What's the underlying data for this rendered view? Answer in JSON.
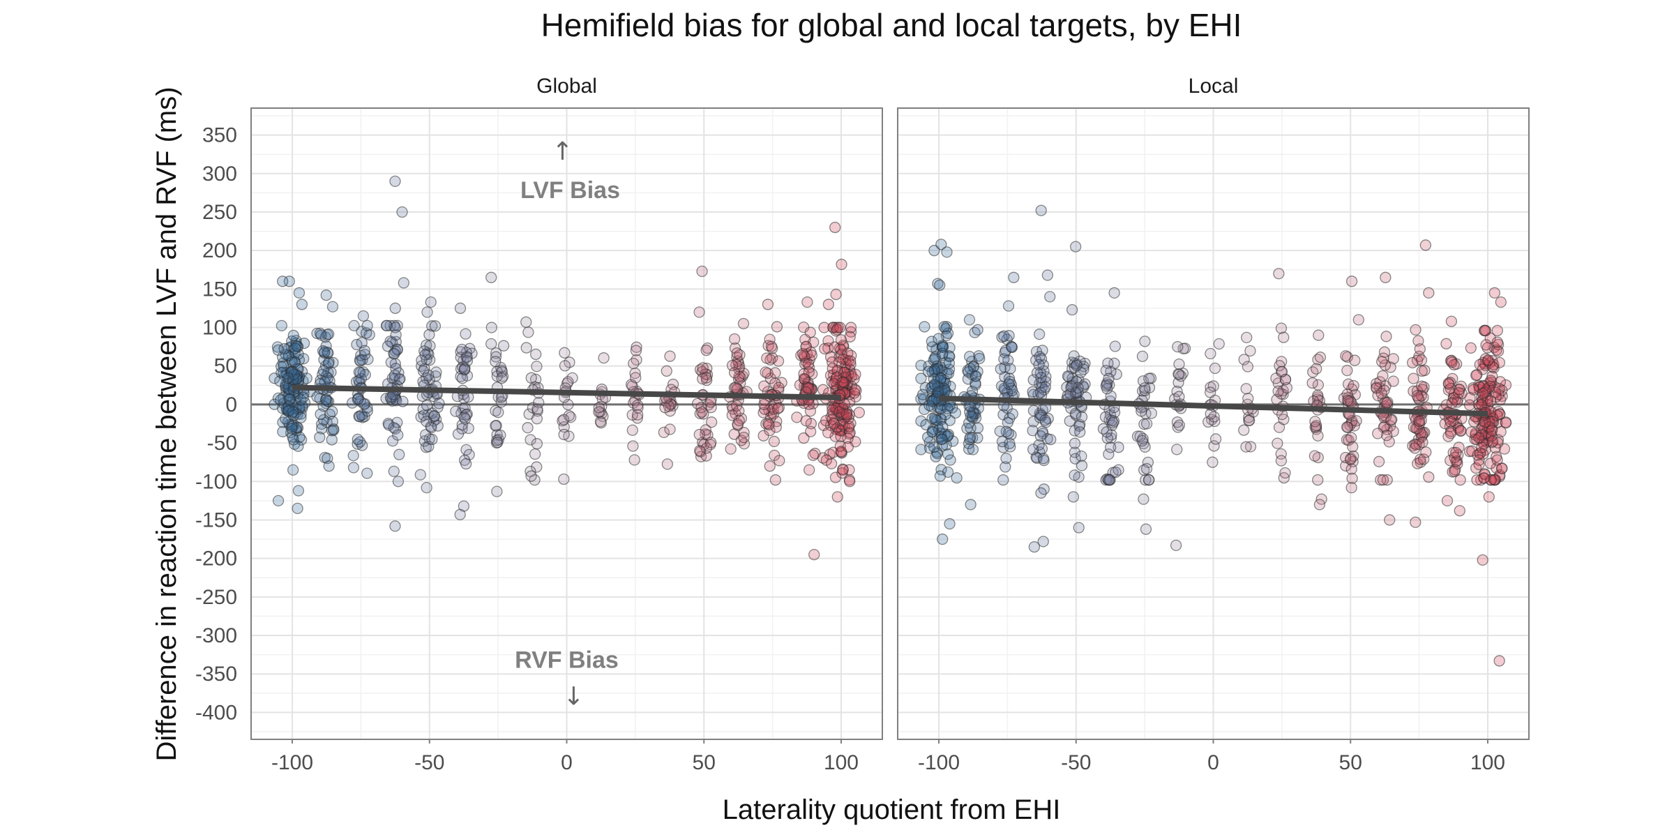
{
  "chart_data": {
    "type": "scatter",
    "title": "Hemifield bias for global and local targets, by EHI",
    "xlabel": "Laterality quotient from EHI",
    "ylabel": "Difference in reaction time between LVF and RVF (ms)",
    "xlim": [
      -115,
      115
    ],
    "ylim": [
      -435,
      385
    ],
    "x_ticks": [
      -100,
      -50,
      0,
      50,
      100
    ],
    "y_ticks": [
      350,
      300,
      250,
      200,
      150,
      100,
      50,
      0,
      -50,
      -100,
      -150,
      -200,
      -250,
      -300,
      -350,
      -400
    ],
    "x_tick_labels": [
      "-100",
      "-50",
      "0",
      "50",
      "100"
    ],
    "y_tick_labels": [
      "350",
      "300",
      "250",
      "200",
      "150",
      "100",
      "50",
      "0",
      "-50",
      "-100",
      "-150",
      "-200",
      "-250",
      "-300",
      "-350",
      "-400"
    ],
    "grid": true,
    "reference_line_y": 0,
    "color_scale": {
      "low": "#3b6a9a",
      "mid": "#a890a4",
      "high": "#d0485a",
      "low_value": -100,
      "high_value": 100
    },
    "annotations": {
      "lvf_label": "LVF Bias",
      "rvf_label": "RVF Bias",
      "up_arrow": "↑",
      "down_arrow": "↓"
    },
    "panels": [
      {
        "name": "Global",
        "trend": {
          "x": [
            -100,
            100
          ],
          "y": [
            22,
            9
          ]
        },
        "clusters": [
          {
            "x": -100,
            "n": 140,
            "mean": 22,
            "sd": 40,
            "outliers": [
              160,
              160,
              145,
              130,
              -112,
              -125,
              -135,
              -85
            ]
          },
          {
            "x": -87.5,
            "n": 55,
            "mean": 28,
            "sd": 45,
            "outliers": [
              142,
              127,
              -70,
              -80
            ]
          },
          {
            "x": -75,
            "n": 45,
            "mean": 22,
            "sd": 48,
            "outliers": [
              115,
              -82
            ]
          },
          {
            "x": -62.5,
            "n": 50,
            "mean": 22,
            "sd": 50,
            "outliers": [
              290,
              250,
              158,
              125,
              -100,
              -158
            ]
          },
          {
            "x": -50,
            "n": 55,
            "mean": 20,
            "sd": 48,
            "outliers": [
              133,
              120,
              -108
            ]
          },
          {
            "x": -37.5,
            "n": 40,
            "mean": 8,
            "sd": 45,
            "outliers": [
              125,
              -132,
              -143
            ]
          },
          {
            "x": -25,
            "n": 28,
            "mean": 10,
            "sd": 50,
            "outliers": [
              165,
              -113
            ]
          },
          {
            "x": -12.5,
            "n": 22,
            "mean": 12,
            "sd": 45,
            "outliers": [
              107,
              -87,
              -93
            ]
          },
          {
            "x": 0,
            "n": 18,
            "mean": 15,
            "sd": 35,
            "outliers": [
              -97
            ]
          },
          {
            "x": 12.5,
            "n": 14,
            "mean": 5,
            "sd": 30,
            "outliers": []
          },
          {
            "x": 25,
            "n": 20,
            "mean": 5,
            "sd": 35,
            "outliers": [
              70,
              -72
            ]
          },
          {
            "x": 37.5,
            "n": 20,
            "mean": 5,
            "sd": 30,
            "outliers": []
          },
          {
            "x": 50,
            "n": 35,
            "mean": 5,
            "sd": 40,
            "outliers": [
              173,
              120,
              -60
            ]
          },
          {
            "x": 62.5,
            "n": 45,
            "mean": 15,
            "sd": 35,
            "outliers": [
              105
            ]
          },
          {
            "x": 75,
            "n": 50,
            "mean": 15,
            "sd": 40,
            "outliers": [
              130,
              -80
            ]
          },
          {
            "x": 87.5,
            "n": 60,
            "mean": 12,
            "sd": 40,
            "outliers": [
              133,
              -195,
              -85
            ]
          },
          {
            "x": 100,
            "n": 170,
            "mean": 10,
            "sd": 45,
            "outliers": [
              230,
              182,
              143,
              130,
              -120,
              -100,
              -85
            ]
          }
        ]
      },
      {
        "name": "Local",
        "trend": {
          "x": [
            -100,
            100
          ],
          "y": [
            8,
            -12
          ]
        },
        "clusters": [
          {
            "x": -100,
            "n": 140,
            "mean": 15,
            "sd": 45,
            "outliers": [
              208,
              200,
              198,
              157,
              155,
              -155,
              -175,
              -93
            ]
          },
          {
            "x": -87.5,
            "n": 50,
            "mean": 10,
            "sd": 42,
            "outliers": [
              110,
              -130
            ]
          },
          {
            "x": -75,
            "n": 45,
            "mean": 15,
            "sd": 45,
            "outliers": [
              165,
              128,
              -70
            ]
          },
          {
            "x": -62.5,
            "n": 50,
            "mean": 10,
            "sd": 50,
            "outliers": [
              252,
              168,
              140,
              -110,
              -115,
              -178,
              -185
            ]
          },
          {
            "x": -50,
            "n": 60,
            "mean": 10,
            "sd": 45,
            "outliers": [
              205,
              123,
              -120,
              -160
            ]
          },
          {
            "x": -37.5,
            "n": 40,
            "mean": -5,
            "sd": 50,
            "outliers": [
              145,
              -85,
              -88
            ]
          },
          {
            "x": -25,
            "n": 30,
            "mean": -5,
            "sd": 45,
            "outliers": [
              82,
              -123,
              -162
            ]
          },
          {
            "x": -12.5,
            "n": 20,
            "mean": 0,
            "sd": 40,
            "outliers": [
              75,
              -183
            ]
          },
          {
            "x": 0,
            "n": 16,
            "mean": 0,
            "sd": 35,
            "outliers": [
              47,
              -75
            ]
          },
          {
            "x": 12.5,
            "n": 14,
            "mean": 0,
            "sd": 35,
            "outliers": [
              87,
              -55
            ]
          },
          {
            "x": 25,
            "n": 25,
            "mean": 5,
            "sd": 45,
            "outliers": [
              170,
              -73
            ]
          },
          {
            "x": 37.5,
            "n": 24,
            "mean": -10,
            "sd": 45,
            "outliers": [
              90,
              -123,
              -130
            ]
          },
          {
            "x": 50,
            "n": 40,
            "mean": -5,
            "sd": 45,
            "outliers": [
              160,
              110,
              -108
            ]
          },
          {
            "x": 62.5,
            "n": 45,
            "mean": -5,
            "sd": 45,
            "outliers": [
              165,
              -150
            ]
          },
          {
            "x": 75,
            "n": 55,
            "mean": -5,
            "sd": 45,
            "outliers": [
              207,
              145,
              -153
            ]
          },
          {
            "x": 87.5,
            "n": 60,
            "mean": -10,
            "sd": 45,
            "outliers": [
              108,
              -125,
              -138
            ]
          },
          {
            "x": 100,
            "n": 170,
            "mean": -10,
            "sd": 50,
            "outliers": [
              145,
              133,
              -120,
              -202,
              -333
            ]
          }
        ]
      }
    ]
  }
}
